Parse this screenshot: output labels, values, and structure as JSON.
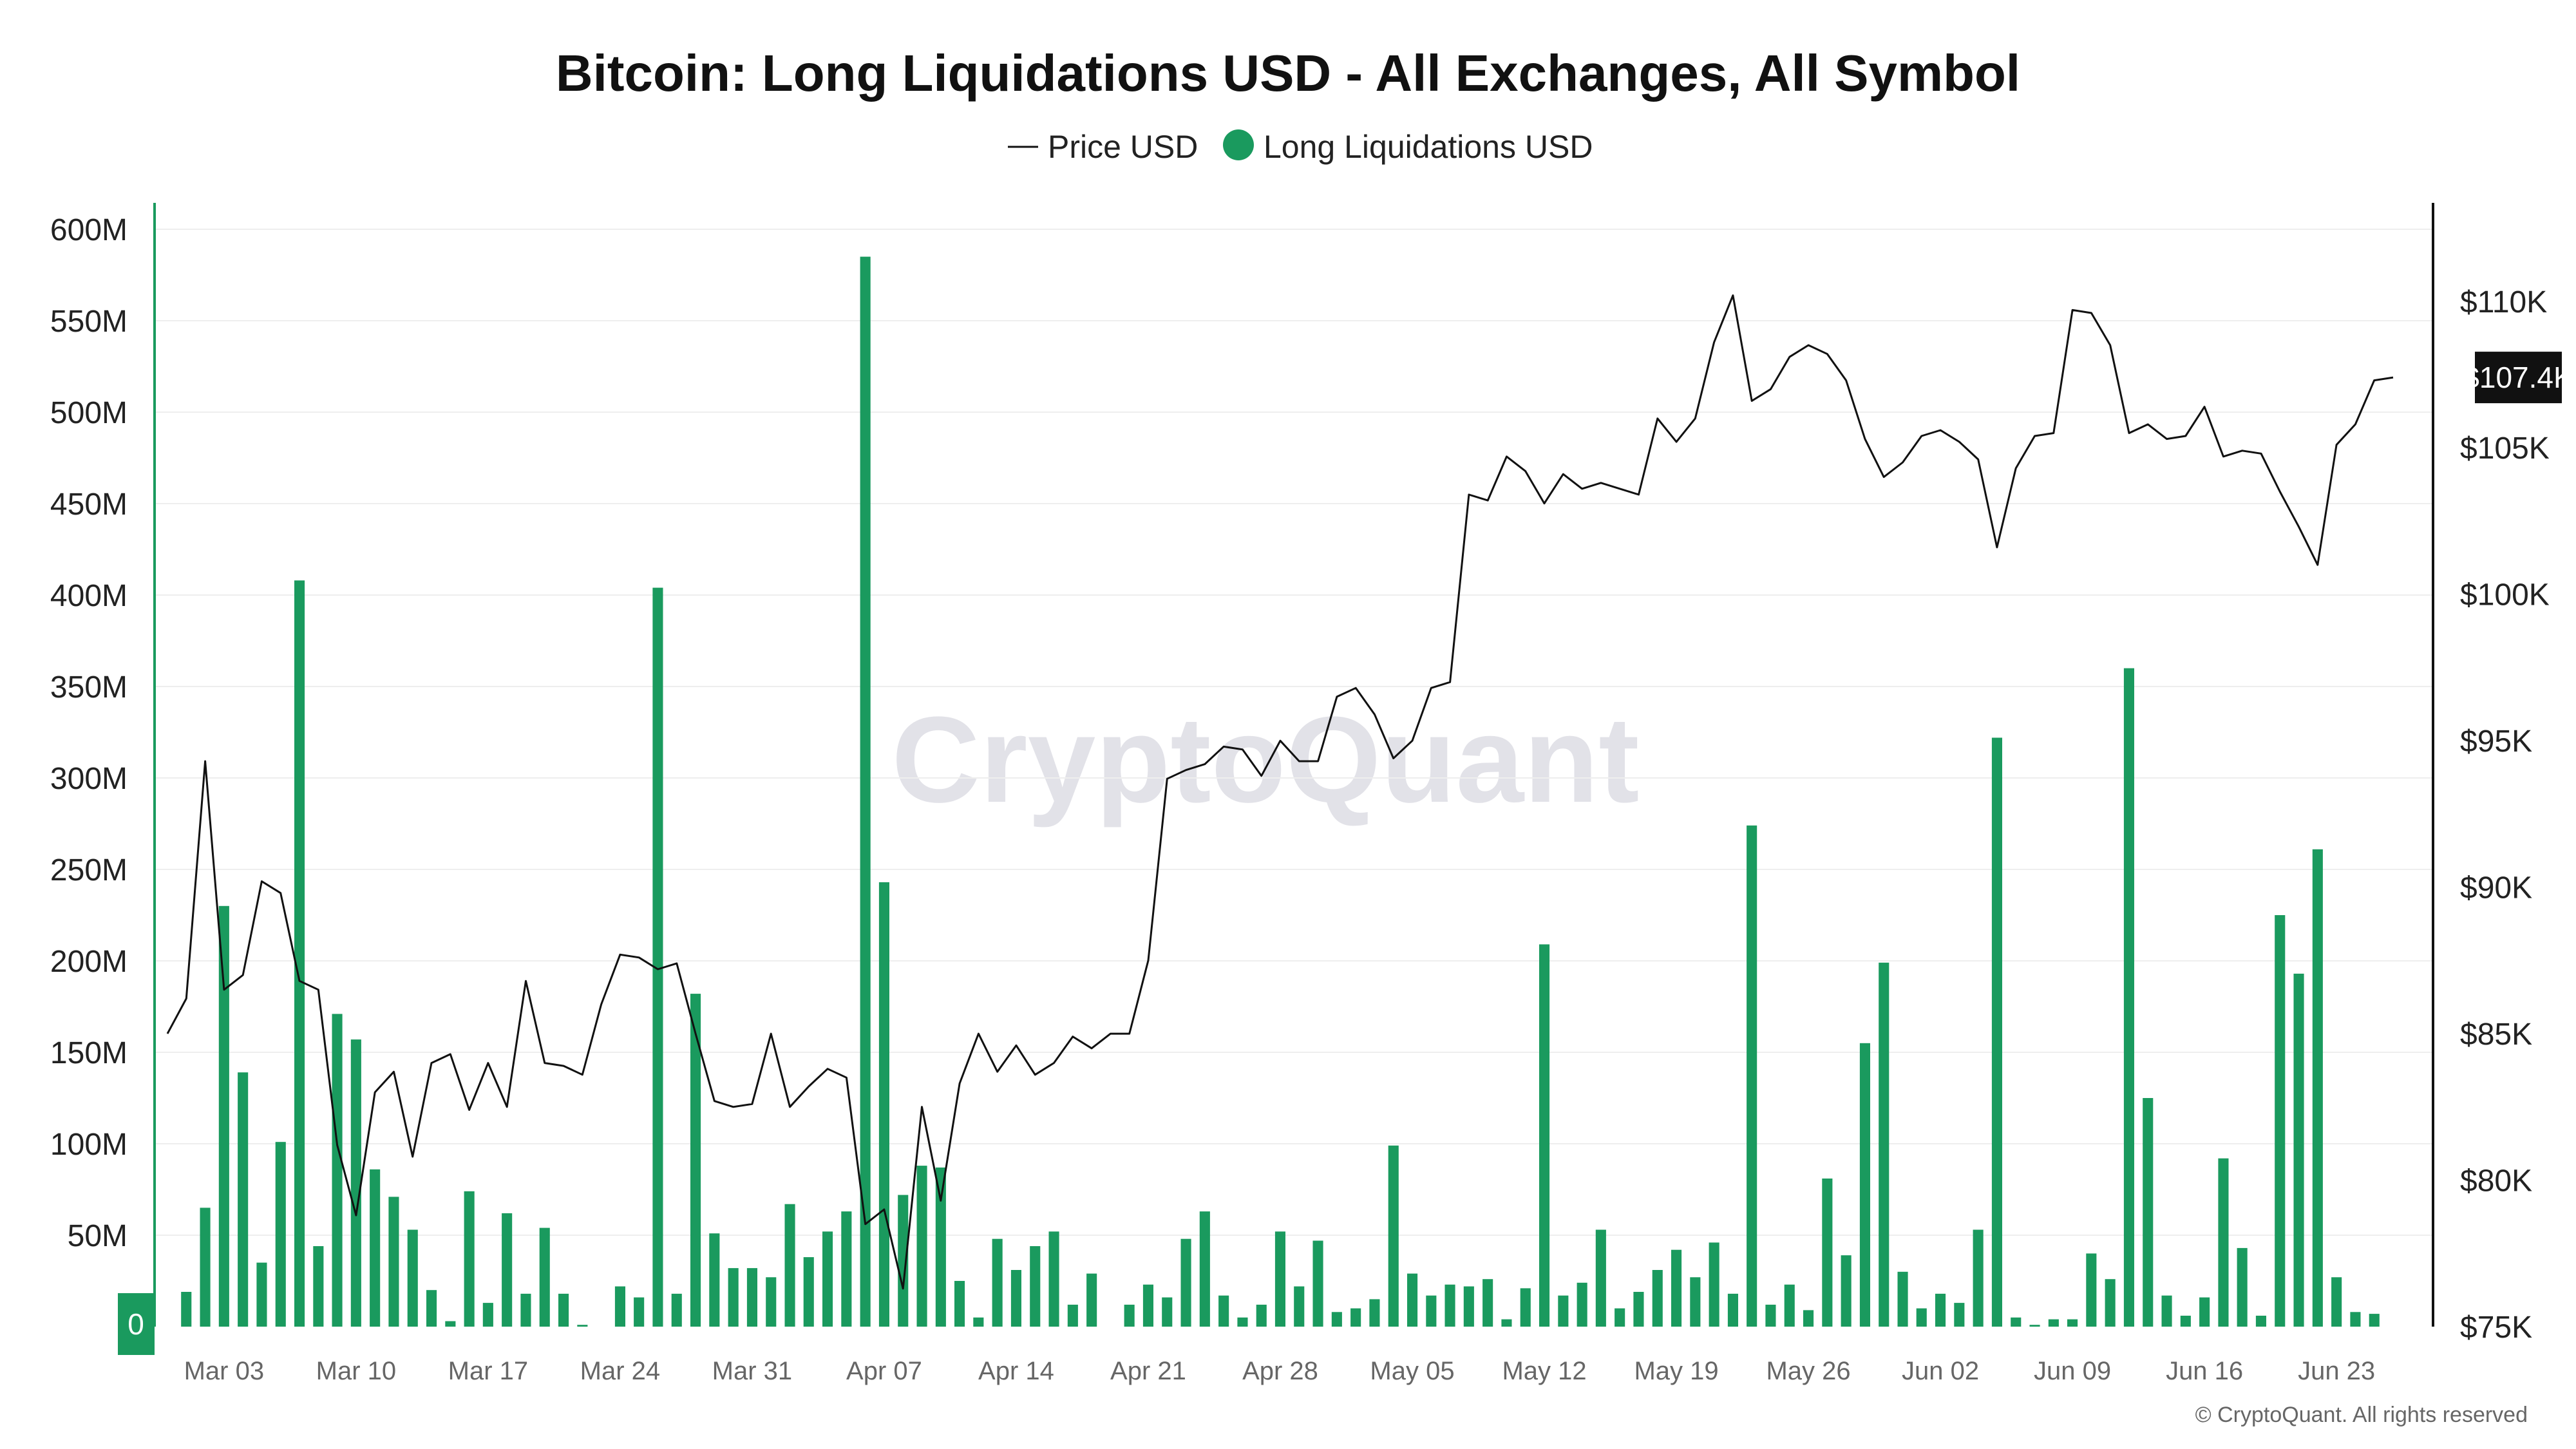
{
  "title": "Bitcoin: Long Liquidations USD - All Exchanges, All Symbol",
  "watermark": "CryptoQuant",
  "copyright": "© CryptoQuant. All rights reserved",
  "price_badge": "$107.4K",
  "zero_badge": "0",
  "colors": {
    "bar": "#1a9a5e",
    "price_line": "#111111",
    "axis_left": "#1a9a5e",
    "axis_right": "#111111",
    "grid": "#eeeeee"
  },
  "chart_data": {
    "type": "bar+line",
    "title": "Bitcoin: Long Liquidations USD - All Exchanges, All Symbol",
    "legend": {
      "placement": "top-center",
      "entries": [
        {
          "label": "Price USD",
          "marker": "line"
        },
        {
          "label": "Long Liquidations USD",
          "marker": "dot"
        }
      ]
    },
    "grid": true,
    "x_start": "2025-02-28",
    "x_end": "2025-06-26",
    "x_ticks": [
      "Mar 03",
      "Mar 10",
      "Mar 17",
      "Mar 24",
      "Mar 31",
      "Apr 07",
      "Apr 14",
      "Apr 21",
      "Apr 28",
      "May 05",
      "May 12",
      "May 19",
      "May 26",
      "Jun 02",
      "Jun 09",
      "Jun 16",
      "Jun 23"
    ],
    "y_left": {
      "label": "Long Liquidations USD",
      "ylim": [
        0,
        600
      ],
      "unit": "M",
      "ticks": [
        "0",
        "50M",
        "100M",
        "150M",
        "200M",
        "250M",
        "300M",
        "350M",
        "400M",
        "450M",
        "500M",
        "550M",
        "600M"
      ]
    },
    "y_right": {
      "label": "Price USD",
      "ylim": [
        75,
        111.6
      ],
      "unit": "K",
      "ticks": [
        "$75K",
        "$80K",
        "$85K",
        "$90K",
        "$95K",
        "$100K",
        "$105K",
        "$110K"
      ]
    },
    "series": [
      {
        "name": "Long Liquidations USD",
        "type": "bar",
        "axis": "left",
        "x_start": "2025-03-01",
        "values": [
          19,
          65,
          230,
          139,
          35,
          101,
          408,
          44,
          171,
          157,
          86,
          71,
          53,
          20,
          3,
          74,
          13,
          62,
          18,
          54,
          18,
          1,
          0,
          22,
          16,
          404,
          18,
          182,
          51,
          32,
          32,
          27,
          67,
          38,
          52,
          63,
          585,
          243,
          72,
          88,
          87,
          25,
          5,
          48,
          31,
          44,
          52,
          12,
          29,
          0,
          12,
          23,
          16,
          48,
          63,
          17,
          5,
          12,
          52,
          22,
          47,
          8,
          10,
          15,
          99,
          29,
          17,
          23,
          22,
          26,
          4,
          21,
          209,
          17,
          24,
          53,
          10,
          19,
          31,
          42,
          27,
          46,
          18,
          274,
          12,
          23,
          9,
          81,
          39,
          155,
          199,
          30,
          10,
          18,
          13,
          53,
          322,
          5,
          1,
          4,
          4,
          40,
          26,
          360,
          125,
          17,
          6,
          16,
          92,
          43,
          6,
          225,
          193,
          261,
          27,
          8,
          7
        ]
      },
      {
        "name": "Price USD",
        "type": "line",
        "axis": "right",
        "x_start": "2025-02-28",
        "values": [
          85.0,
          86.2,
          94.3,
          86.5,
          87.0,
          90.2,
          89.8,
          86.8,
          86.5,
          81.2,
          78.8,
          83.0,
          83.7,
          80.8,
          84.0,
          84.3,
          82.4,
          84.0,
          82.5,
          86.8,
          84.0,
          83.9,
          83.6,
          86.0,
          87.7,
          87.6,
          87.2,
          87.4,
          85.0,
          82.7,
          82.5,
          82.6,
          85.0,
          82.5,
          83.2,
          83.8,
          83.5,
          78.5,
          79.0,
          76.3,
          82.5,
          79.3,
          83.3,
          85.0,
          83.7,
          84.6,
          83.6,
          84.0,
          84.9,
          84.5,
          85.0,
          85.0,
          87.5,
          93.7,
          94.0,
          94.2,
          94.8,
          94.7,
          93.8,
          95.0,
          94.3,
          94.3,
          96.5,
          96.8,
          95.9,
          94.4,
          95.0,
          96.8,
          97.0,
          103.4,
          103.2,
          104.7,
          104.2,
          103.1,
          104.1,
          103.6,
          103.8,
          103.6,
          103.4,
          106.0,
          105.2,
          106.0,
          108.6,
          110.2,
          106.6,
          107.0,
          108.1,
          108.5,
          108.2,
          107.3,
          105.3,
          104.0,
          104.5,
          105.4,
          105.6,
          105.2,
          104.6,
          101.6,
          104.3,
          105.4,
          105.5,
          109.7,
          109.6,
          108.5,
          105.5,
          105.8,
          105.3,
          105.4,
          106.4,
          104.7,
          104.9,
          104.8,
          103.5,
          102.3,
          101.0,
          105.1,
          105.8,
          107.3,
          107.4
        ]
      }
    ]
  }
}
